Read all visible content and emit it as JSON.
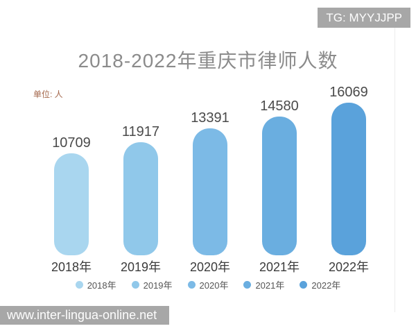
{
  "watermarks": {
    "top_right": "TG: MYYJJPP",
    "bottom_left": "www.inter-lingua-online.net"
  },
  "chart_data": {
    "type": "bar",
    "title": "2018-2022年重庆市律师人数",
    "unit_label": "单位: 人",
    "categories": [
      "2018年",
      "2019年",
      "2020年",
      "2021年",
      "2022年"
    ],
    "values": [
      10709,
      11917,
      13391,
      14580,
      16069
    ],
    "ylim": [
      0,
      16069
    ],
    "bar_colors": [
      "#a9d6ef",
      "#90c8ea",
      "#7cbae6",
      "#6aaee0",
      "#5aa2db"
    ],
    "legend": [
      "2018年",
      "2019年",
      "2020年",
      "2021年",
      "2022年"
    ],
    "legend_position": "bottom",
    "grid": false,
    "xlabel": "",
    "ylabel": ""
  },
  "colors": {
    "title": "#8b8b8b",
    "unit_label": "#a3664a",
    "value_label": "#4a4a4a",
    "axis_label": "#3b3b3b",
    "watermark_bg": "#a7a7a7",
    "watermark_text": "#fdfdfd"
  }
}
